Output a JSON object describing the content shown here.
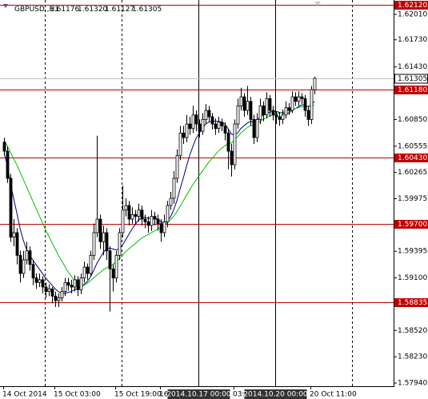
{
  "chart_data": {
    "type": "candlestick",
    "symbol": "GBPUSD.,H1",
    "header_ohlc": [
      1.61176,
      {
        "value": 1.6132,
        "label": "1.61320"
      },
      1.61127,
      1.61305
    ],
    "categories": [
      "14 Oct 2014",
      null,
      null,
      null,
      null,
      null,
      null,
      null,
      null,
      null,
      null,
      null,
      null,
      null,
      null,
      null,
      "15 Oct 03:00",
      null,
      null,
      null,
      null,
      null,
      null,
      null,
      null,
      null,
      null,
      null,
      null,
      null,
      null,
      null,
      null,
      null,
      null,
      "15 Oct 19:00",
      null,
      null,
      null,
      null,
      null,
      null,
      null,
      null,
      null,
      null,
      null,
      null,
      null,
      "16",
      null,
      null,
      null,
      null,
      null,
      null,
      null,
      null,
      null,
      null,
      null,
      "2014.10.17 00:00",
      null,
      null,
      null,
      null,
      null,
      null,
      null,
      null,
      null,
      null,
      "03:",
      null,
      null,
      null,
      null,
      null,
      null,
      null,
      null,
      null,
      null,
      null,
      null,
      "2014.10.20 00:00",
      null,
      null,
      null,
      null,
      null,
      null,
      null,
      null,
      null,
      null,
      "20 Oct 11:00",
      null
    ],
    "period_separators": [
      61,
      85
    ],
    "open": [
      1.606,
      1.605,
      1.602,
      1.5955,
      1.596,
      1.5935,
      1.5915,
      1.593,
      1.594,
      1.5925,
      1.591,
      1.5905,
      1.5908,
      1.59,
      1.5895,
      1.5898,
      1.589,
      1.5885,
      1.5888,
      1.5895,
      1.5905,
      1.5902,
      1.59,
      1.5908,
      1.5897,
      1.591,
      1.5922,
      1.5915,
      1.5935,
      1.596,
      1.5975,
      1.595,
      1.596,
      1.594,
      1.592,
      1.591,
      1.5935,
      1.596,
      1.5985,
      1.599,
      1.5975,
      1.598,
      1.5978,
      1.5985,
      1.5975,
      1.5972,
      1.5968,
      1.5978,
      1.5975,
      1.597,
      1.596,
      1.5972,
      1.599,
      1.5998,
      1.602,
      1.6045,
      1.607,
      1.6065,
      1.608,
      1.6075,
      1.609,
      1.608,
      1.6072,
      1.6085,
      1.6095,
      1.6088,
      1.608,
      1.6075,
      1.6082,
      1.6078,
      1.607,
      1.605,
      1.6035,
      1.608,
      1.61,
      1.611,
      1.6095,
      1.6105,
      1.6085,
      1.6065,
      1.6085,
      1.61,
      1.609,
      1.6108,
      1.6095,
      1.609,
      1.6088,
      1.6085,
      1.609,
      1.6098,
      1.6095,
      1.611,
      1.6105,
      1.611,
      1.6108,
      1.6095,
      1.6085,
      1.61176
    ],
    "high": [
      1.6065,
      1.6055,
      1.6025,
      1.5975,
      1.5965,
      1.594,
      1.594,
      1.595,
      1.5945,
      1.593,
      1.5915,
      1.5915,
      1.5912,
      1.5905,
      1.5903,
      1.59,
      1.5895,
      1.5893,
      1.59,
      1.591,
      1.591,
      1.5908,
      1.5913,
      1.5912,
      1.5915,
      1.5928,
      1.5926,
      1.594,
      1.597,
      1.6067,
      1.598,
      1.5968,
      1.5965,
      1.5945,
      1.5925,
      1.594,
      1.5965,
      1.6012,
      1.5998,
      1.5995,
      1.5988,
      1.5985,
      1.5992,
      1.599,
      1.598,
      1.5978,
      1.5985,
      1.5983,
      1.598,
      1.5975,
      1.598,
      1.5995,
      1.6005,
      1.6028,
      1.6052,
      1.6078,
      1.6078,
      1.609,
      1.6088,
      1.61,
      1.6095,
      1.6085,
      1.6092,
      1.6102,
      1.61,
      1.6092,
      1.6086,
      1.6088,
      1.6086,
      1.6082,
      1.6074,
      1.6058,
      1.6085,
      1.6108,
      1.612,
      1.6114,
      1.6122,
      1.611,
      1.609,
      1.6092,
      1.6108,
      1.6105,
      1.6115,
      1.6112,
      1.61,
      1.6094,
      1.6093,
      1.6096,
      1.6105,
      1.6103,
      1.6116,
      1.6115,
      1.6116,
      1.6114,
      1.6112,
      1.61,
      1.6122,
      1.6132
    ],
    "low": [
      1.6045,
      1.6015,
      1.595,
      1.5945,
      1.5925,
      1.5905,
      1.591,
      1.5925,
      1.5918,
      1.5902,
      1.5898,
      1.59,
      1.5893,
      1.5888,
      1.589,
      1.5882,
      1.5878,
      1.5878,
      1.5884,
      1.589,
      1.5896,
      1.5893,
      1.5895,
      1.589,
      1.5892,
      1.5905,
      1.5908,
      1.5912,
      1.593,
      1.5955,
      1.5942,
      1.5935,
      1.593,
      1.5873,
      1.5895,
      1.5905,
      1.593,
      1.5955,
      1.5978,
      1.5968,
      1.597,
      1.597,
      1.5972,
      1.5968,
      1.5965,
      1.596,
      1.5962,
      1.5968,
      1.5962,
      1.595,
      1.5955,
      1.5966,
      1.5985,
      1.5992,
      1.6015,
      1.604,
      1.6058,
      1.606,
      1.6068,
      1.607,
      1.6072,
      1.6065,
      1.6068,
      1.608,
      1.6082,
      1.6074,
      1.6068,
      1.607,
      1.6072,
      1.6062,
      1.603,
      1.6022,
      1.603,
      1.6075,
      1.6095,
      1.6088,
      1.609,
      1.6078,
      1.6058,
      1.606,
      1.608,
      1.6083,
      1.6086,
      1.6088,
      1.6084,
      1.608,
      1.6078,
      1.608,
      1.6086,
      1.609,
      1.6092,
      1.61,
      1.61,
      1.6102,
      1.6088,
      1.6078,
      1.608,
      1.61127
    ],
    "close": [
      1.605,
      1.602,
      1.5955,
      1.596,
      1.5935,
      1.5915,
      1.593,
      1.594,
      1.5925,
      1.591,
      1.5905,
      1.5908,
      1.59,
      1.5895,
      1.5898,
      1.589,
      1.5885,
      1.5888,
      1.5895,
      1.5905,
      1.5902,
      1.59,
      1.5908,
      1.5897,
      1.591,
      1.5922,
      1.5915,
      1.5935,
      1.596,
      1.5975,
      1.595,
      1.596,
      1.594,
      1.592,
      1.591,
      1.5935,
      1.596,
      1.5985,
      1.599,
      1.5975,
      1.598,
      1.5978,
      1.5985,
      1.5975,
      1.5972,
      1.5968,
      1.5978,
      1.5975,
      1.597,
      1.596,
      1.5972,
      1.599,
      1.5998,
      1.602,
      1.6045,
      1.607,
      1.6065,
      1.608,
      1.6075,
      1.609,
      1.608,
      1.6072,
      1.6085,
      1.6095,
      1.6088,
      1.608,
      1.6075,
      1.6082,
      1.6078,
      1.607,
      1.605,
      1.6035,
      1.608,
      1.61,
      1.611,
      1.6095,
      1.6105,
      1.6085,
      1.6065,
      1.6085,
      1.61,
      1.609,
      1.6108,
      1.6095,
      1.609,
      1.6088,
      1.6085,
      1.609,
      1.6098,
      1.6095,
      1.611,
      1.6105,
      1.611,
      1.6108,
      1.6095,
      1.6085,
      1.6118,
      1.61305
    ],
    "lines": [
      {
        "color": "#000080",
        "values": [
          1.6048,
          1.6035,
          1.6015,
          1.5998,
          1.5982,
          1.5965,
          1.5952,
          1.5942,
          1.5935,
          1.593,
          1.5925,
          1.592,
          1.5915,
          1.591,
          1.5906,
          1.5902,
          1.5898,
          1.5895,
          1.5893,
          1.5893,
          1.5894,
          1.5895,
          1.5897,
          1.5898,
          1.59,
          1.5903,
          1.5906,
          1.5911,
          1.5918,
          1.5926,
          1.5932,
          1.5938,
          1.5942,
          1.5943,
          1.5942,
          1.5941,
          1.5942,
          1.5946,
          1.5952,
          1.5958,
          1.5964,
          1.5969,
          1.5974,
          1.5976,
          1.5977,
          1.5976,
          1.5976,
          1.5976,
          1.5975,
          1.5972,
          1.5971,
          1.5973,
          1.5977,
          1.5985,
          1.5995,
          1.6008,
          1.602,
          1.6033,
          1.6045,
          1.6055,
          1.6064,
          1.607,
          1.6075,
          1.608,
          1.6082,
          1.6083,
          1.6083,
          1.6083,
          1.6082,
          1.608,
          1.6075,
          1.6069,
          1.6068,
          1.607,
          1.6075,
          1.6078,
          1.6081,
          1.6083,
          1.6082,
          1.6084,
          1.6088,
          1.609,
          1.6092,
          1.6093,
          1.6094,
          1.6094,
          1.6093,
          1.6092,
          1.6092,
          1.6092,
          1.6095,
          1.6097,
          1.6099,
          1.6101,
          1.6101,
          1.6099,
          1.6101,
          1.6105
        ]
      },
      {
        "color": "#00c000",
        "values": [
          1.6062,
          1.6056,
          1.6049,
          1.6042,
          1.6035,
          1.6027,
          1.6019,
          1.6011,
          1.6003,
          1.5995,
          1.5987,
          1.5979,
          1.5971,
          1.5963,
          1.5956,
          1.5949,
          1.5942,
          1.5935,
          1.5929,
          1.5923,
          1.5917,
          1.5912,
          1.5907,
          1.5903,
          1.59,
          1.5902,
          1.5904,
          1.5907,
          1.591,
          1.5913,
          1.5916,
          1.5919,
          1.5921,
          1.5923,
          1.5925,
          1.5928,
          1.5931,
          1.5935,
          1.5939,
          1.5942,
          1.5945,
          1.5948,
          1.5951,
          1.5954,
          1.5956,
          1.5958,
          1.596,
          1.5962,
          1.5964,
          1.5966,
          1.5968,
          1.5971,
          1.5974,
          1.5978,
          1.5983,
          1.5989,
          1.5995,
          1.6001,
          1.6007,
          1.6013,
          1.6018,
          1.6023,
          1.6028,
          1.6033,
          1.6038,
          1.6042,
          1.6046,
          1.605,
          1.6053,
          1.6056,
          1.6058,
          1.6059,
          1.6062,
          1.6066,
          1.607,
          1.6073,
          1.6076,
          1.6078,
          1.6079,
          1.6081,
          1.6083,
          1.6085,
          1.6087,
          1.6089,
          1.609,
          1.6091,
          1.6092,
          1.6093,
          1.6094,
          1.6095,
          1.6096,
          1.6097,
          1.6098,
          1.6099,
          1.6099,
          1.6099,
          1.61,
          1.6101
        ]
      }
    ],
    "ylim": [
      1.57905,
      1.62169
    ],
    "yticks": [
      {
        "value": 1.6201,
        "label": "1.62010"
      },
      {
        "value": 1.6173,
        "label": "1.61730"
      },
      {
        "value": 1.6143,
        "label": "1.61430"
      },
      {
        "value": 1.6085,
        "label": "1.60850"
      },
      1.60555,
      1.60265,
      1.59975,
      1.59395,
      {
        "value": 1.591,
        "label": "1.59100"
      },
      {
        "value": 1.5852,
        "label": "1.58520"
      },
      {
        "value": 1.5823,
        "label": "1.58230"
      },
      {
        "value": 1.5794,
        "label": "1.57940"
      }
    ],
    "levels": [
      {
        "value": 1.6212,
        "label": "1.62120"
      },
      {
        "value": 1.6118,
        "label": "1.61180"
      },
      {
        "value": 1.6043,
        "label": "1.60430"
      },
      {
        "value": 1.597,
        "label": "1.59700"
      },
      1.58835
    ],
    "current_price": 1.61305,
    "grid": true,
    "bull_color": "#ffffff",
    "bear_color": "#000000",
    "candle_line_color": "#000000",
    "level_color": "#c00000",
    "current_line_color": "#c0c0c0"
  }
}
